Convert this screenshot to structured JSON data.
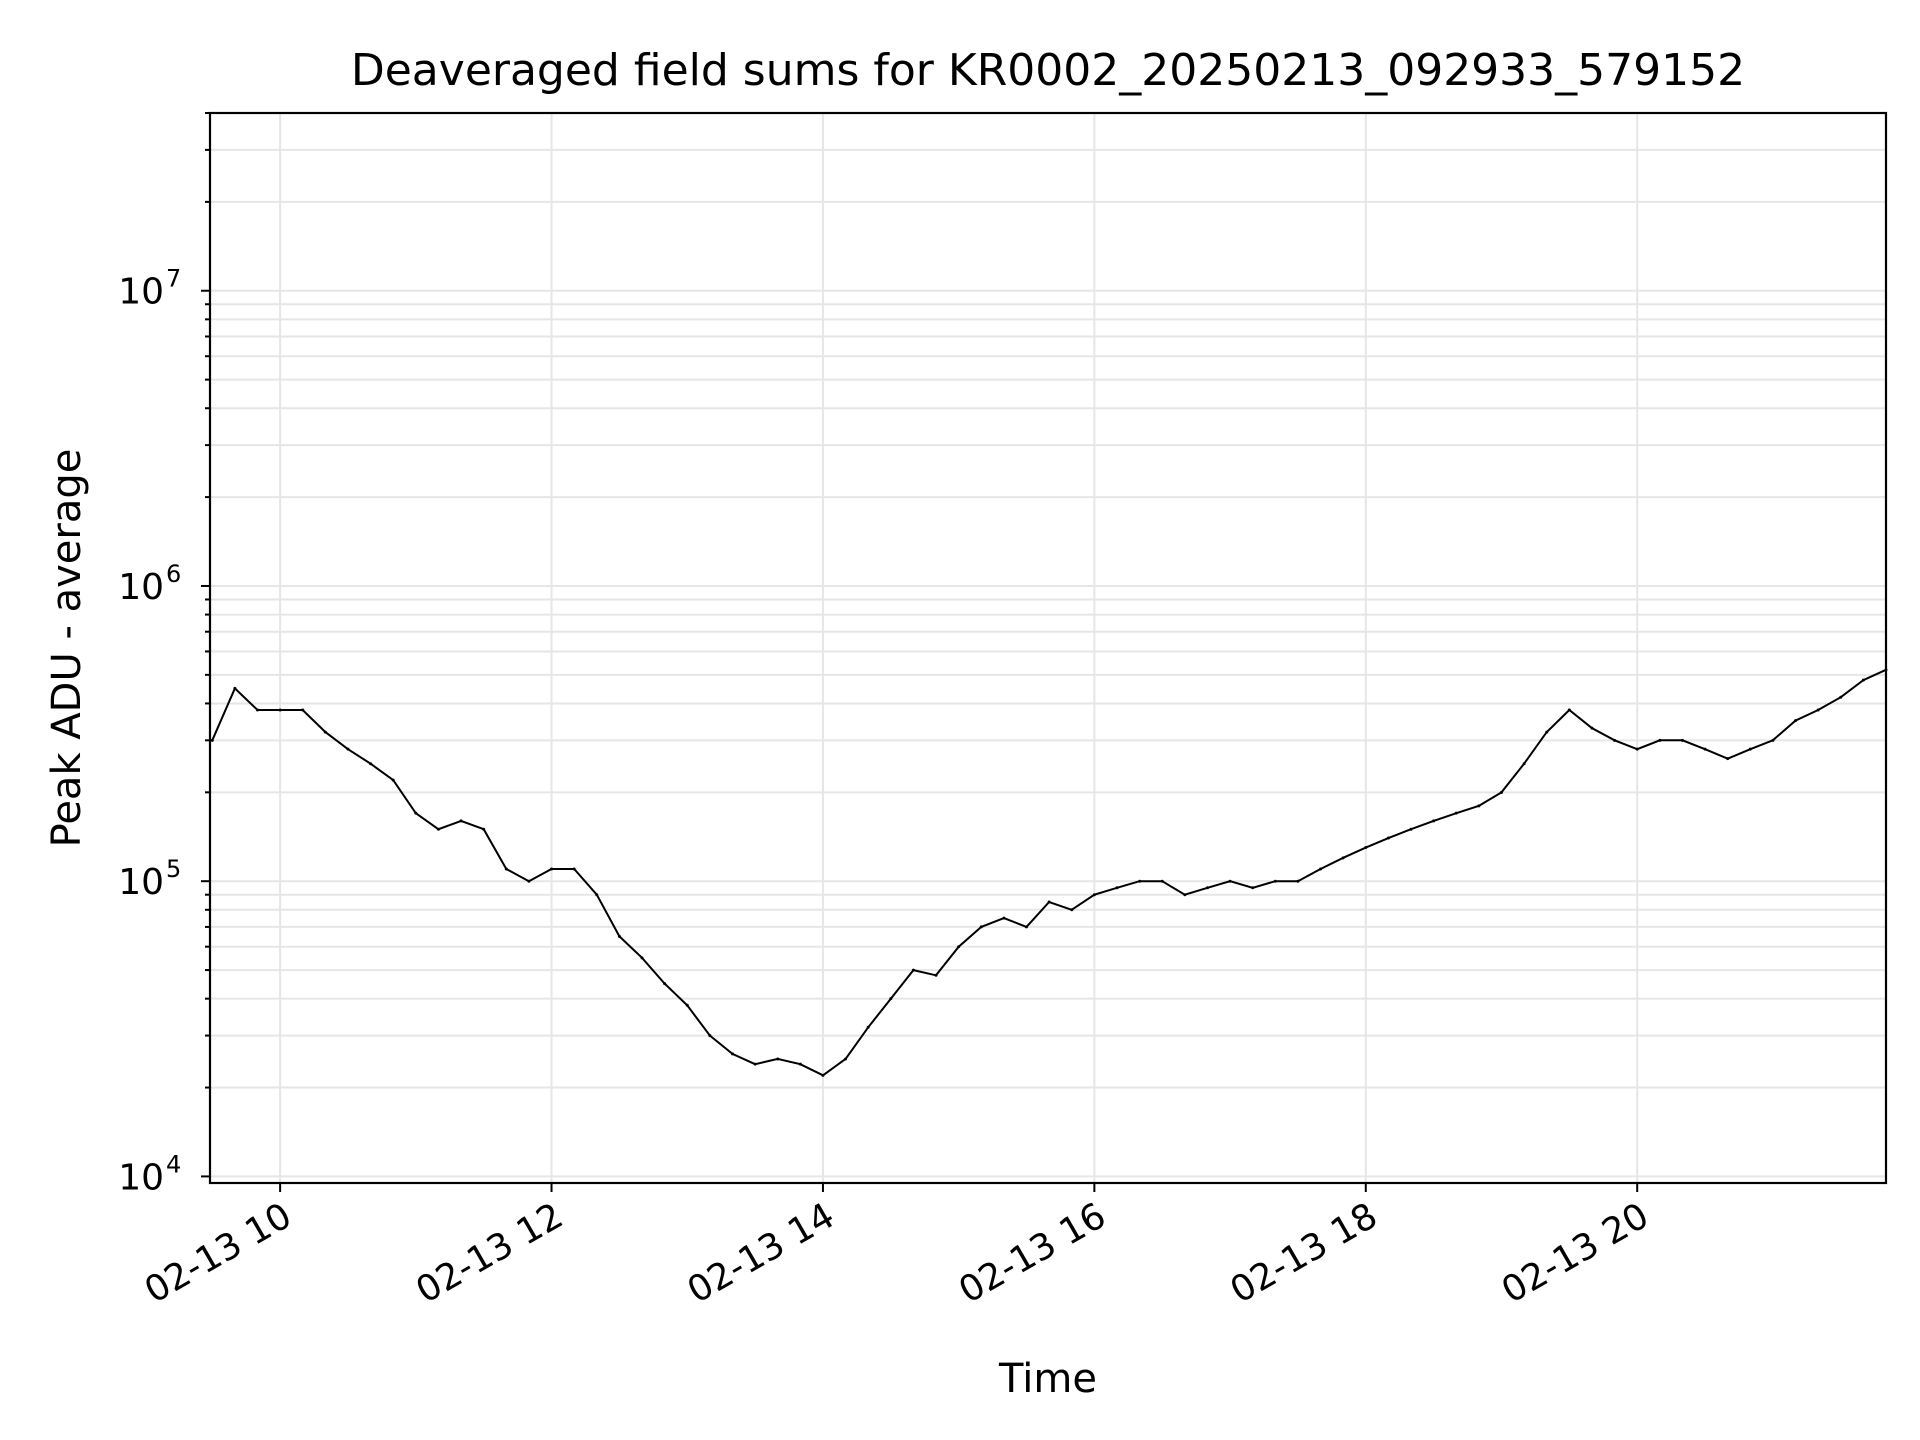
{
  "chart_data": {
    "type": "line",
    "title": "Deaveraged field sums for KR0002_20250213_092933_579152",
    "xlabel": "Time",
    "ylabel": "Peak ADU - average",
    "x_axis": {
      "kind": "time",
      "range": [
        "2025-02-13T09:29",
        "2025-02-13T21:50"
      ],
      "ticks": [
        "02-13 10",
        "02-13 12",
        "02-13 14",
        "02-13 16",
        "02-13 18",
        "02-13 20"
      ]
    },
    "y_axis": {
      "scale": "log",
      "range": [
        9500,
        40000000
      ],
      "ticks": [
        "10^4",
        "10^5",
        "10^6",
        "10^7"
      ]
    },
    "grid": true,
    "line_color": "#000000",
    "series": [
      {
        "x": [
          "09:30",
          "09:40",
          "09:50",
          "10:00",
          "10:10",
          "10:20",
          "10:30",
          "10:40",
          "10:50",
          "11:00",
          "11:10",
          "11:20",
          "11:30",
          "11:40",
          "11:50",
          "12:00",
          "12:10",
          "12:20",
          "12:30",
          "12:40",
          "12:50",
          "13:00",
          "13:10",
          "13:20",
          "13:30",
          "13:40",
          "13:50",
          "14:00",
          "14:10",
          "14:20",
          "14:30",
          "14:40",
          "14:50",
          "15:00",
          "15:10",
          "15:20",
          "15:30",
          "15:40",
          "15:50",
          "16:00",
          "16:10",
          "16:20",
          "16:30",
          "16:40",
          "16:50",
          "17:00",
          "17:10",
          "17:20",
          "17:30",
          "17:40",
          "17:50",
          "18:00",
          "18:10",
          "18:20",
          "18:30",
          "18:40",
          "18:50",
          "19:00",
          "19:10",
          "19:20",
          "19:30",
          "19:40",
          "19:50",
          "20:00",
          "20:10",
          "20:20",
          "20:30",
          "20:40",
          "20:50",
          "21:00",
          "21:10",
          "21:20",
          "21:30",
          "21:40",
          "21:50"
        ],
        "y": [
          300000,
          450000,
          380000,
          380000,
          380000,
          320000,
          280000,
          250000,
          220000,
          170000,
          150000,
          160000,
          150000,
          110000,
          100000,
          110000,
          110000,
          90000,
          65000,
          55000,
          45000,
          38000,
          30000,
          26000,
          24000,
          25000,
          24000,
          22000,
          25000,
          32000,
          40000,
          50000,
          48000,
          60000,
          70000,
          75000,
          70000,
          85000,
          80000,
          90000,
          95000,
          100000,
          100000,
          90000,
          95000,
          100000,
          95000,
          100000,
          100000,
          110000,
          120000,
          130000,
          140000,
          150000,
          160000,
          170000,
          180000,
          200000,
          250000,
          320000,
          380000,
          330000,
          300000,
          280000,
          300000,
          300000,
          280000,
          260000,
          280000,
          300000,
          350000,
          380000,
          420000,
          480000,
          520000
        ]
      }
    ]
  }
}
